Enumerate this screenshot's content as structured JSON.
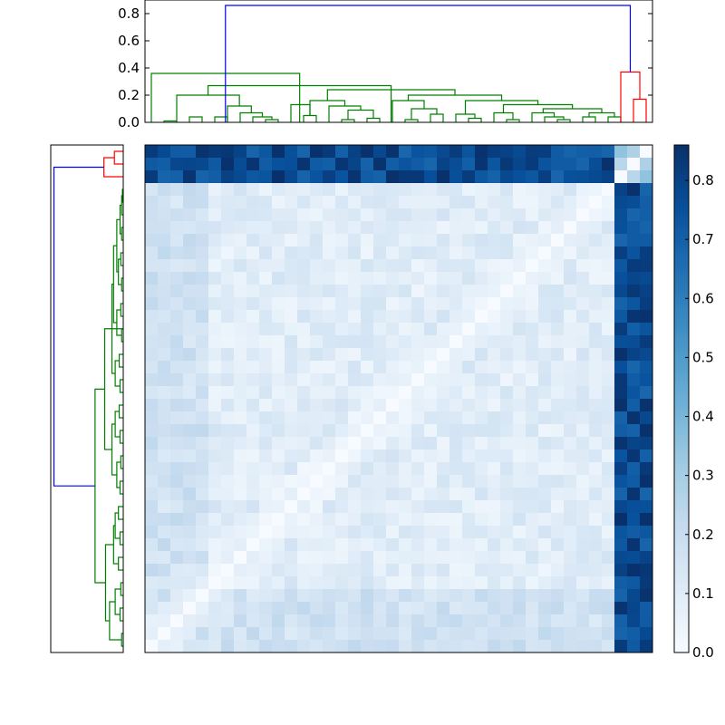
{
  "chart_data": [
    {
      "type": "dendrogram",
      "orientation": "top",
      "ylim": [
        0,
        0.9
      ],
      "yticks": [
        "0.0",
        "0.2",
        "0.4",
        "0.6",
        "0.8"
      ],
      "leaf_count": 40,
      "links": [
        {
          "a": 1,
          "b": 2,
          "h": 0.01,
          "color": "#008000"
        },
        {
          "a": 3,
          "b": 4,
          "h": 0.04,
          "color": "#008000"
        },
        {
          "a": 5,
          "b": 6,
          "h": 0.04,
          "color": "#008000"
        },
        {
          "a": 9,
          "b": 10,
          "h": 0.02,
          "color": "#008000"
        },
        {
          "a": 8,
          "b": 9.5,
          "h": 0.04,
          "color": "#008000"
        },
        {
          "a": 7,
          "b": 8.75,
          "h": 0.07,
          "color": "#008000"
        },
        {
          "a": 6,
          "b": 7.88,
          "h": 0.12,
          "color": "#008000"
        },
        {
          "a": 2,
          "b": 6.94,
          "h": 0.2,
          "color": "#008000"
        },
        {
          "a": 12,
          "b": 13,
          "h": 0.05,
          "color": "#008000"
        },
        {
          "a": 11,
          "b": 12.5,
          "h": 0.13,
          "color": "#008000"
        },
        {
          "a": 15,
          "b": 16,
          "h": 0.02,
          "color": "#008000"
        },
        {
          "a": 17,
          "b": 18,
          "h": 0.03,
          "color": "#008000"
        },
        {
          "a": 15.5,
          "b": 17.5,
          "h": 0.09,
          "color": "#008000"
        },
        {
          "a": 14,
          "b": 16.5,
          "h": 0.12,
          "color": "#008000"
        },
        {
          "a": 12.5,
          "b": 15.25,
          "h": 0.16,
          "color": "#008000"
        },
        {
          "a": 20,
          "b": 21,
          "h": 0.02,
          "color": "#008000"
        },
        {
          "a": 22,
          "b": 23,
          "h": 0.06,
          "color": "#008000"
        },
        {
          "a": 20.5,
          "b": 22.5,
          "h": 0.1,
          "color": "#008000"
        },
        {
          "a": 19,
          "b": 21.5,
          "h": 0.16,
          "color": "#008000"
        },
        {
          "a": 25,
          "b": 26,
          "h": 0.03,
          "color": "#008000"
        },
        {
          "a": 24,
          "b": 25.5,
          "h": 0.06,
          "color": "#008000"
        },
        {
          "a": 28,
          "b": 29,
          "h": 0.02,
          "color": "#008000"
        },
        {
          "a": 27,
          "b": 28.5,
          "h": 0.07,
          "color": "#008000"
        },
        {
          "a": 32,
          "b": 33,
          "h": 0.02,
          "color": "#008000"
        },
        {
          "a": 31,
          "b": 32.5,
          "h": 0.04,
          "color": "#008000"
        },
        {
          "a": 30,
          "b": 31.75,
          "h": 0.07,
          "color": "#008000"
        },
        {
          "a": 34,
          "b": 35,
          "h": 0.04,
          "color": "#008000"
        },
        {
          "a": 36,
          "b": 37,
          "h": 0.04,
          "color": "#008000"
        },
        {
          "a": 34.5,
          "b": 36.5,
          "h": 0.07,
          "color": "#008000"
        },
        {
          "a": 30.88,
          "b": 35.5,
          "h": 0.1,
          "color": "#008000"
        },
        {
          "a": 27.75,
          "b": 33.19,
          "h": 0.13,
          "color": "#008000"
        },
        {
          "a": 24.75,
          "b": 30.47,
          "h": 0.16,
          "color": "#008000"
        },
        {
          "a": 20.25,
          "b": 27.61,
          "h": 0.2,
          "color": "#008000"
        },
        {
          "a": 13.88,
          "b": 23.93,
          "h": 0.24,
          "color": "#008000"
        },
        {
          "a": 4.47,
          "b": 18.9,
          "h": 0.27,
          "color": "#008000"
        },
        {
          "a": 0,
          "b": 11.69,
          "h": 0.36,
          "color": "#008000"
        },
        {
          "a": 38,
          "b": 39,
          "h": 0.17,
          "color": "#ff0000"
        },
        {
          "a": 37,
          "b": 38.5,
          "h": 0.37,
          "color": "#ff0000"
        },
        {
          "a": 5.84,
          "b": 37.75,
          "h": 0.86,
          "color": "#0000ff"
        }
      ]
    },
    {
      "type": "dendrogram",
      "orientation": "left",
      "xlim": [
        0,
        0.9
      ],
      "leaf_count": 40,
      "links": [
        {
          "a": 0,
          "b": 1,
          "h": 0.11,
          "color": "#ff0000"
        },
        {
          "a": 0.5,
          "b": 2,
          "h": 0.24,
          "color": "#ff0000"
        },
        {
          "a": 3,
          "b": 4,
          "h": 0.01,
          "color": "#008000"
        },
        {
          "a": 3.5,
          "b": 5,
          "h": 0.02,
          "color": "#008000"
        },
        {
          "a": 6,
          "b": 7,
          "h": 0.02,
          "color": "#008000"
        },
        {
          "a": 4.25,
          "b": 6.5,
          "h": 0.04,
          "color": "#008000"
        },
        {
          "a": 8,
          "b": 9,
          "h": 0.03,
          "color": "#008000"
        },
        {
          "a": 10,
          "b": 11,
          "h": 0.02,
          "color": "#008000"
        },
        {
          "a": 8.5,
          "b": 10.5,
          "h": 0.06,
          "color": "#008000"
        },
        {
          "a": 5.38,
          "b": 9.5,
          "h": 0.08,
          "color": "#008000"
        },
        {
          "a": 12,
          "b": 13,
          "h": 0.03,
          "color": "#008000"
        },
        {
          "a": 14,
          "b": 15,
          "h": 0.02,
          "color": "#008000"
        },
        {
          "a": 12.5,
          "b": 14.5,
          "h": 0.08,
          "color": "#008000"
        },
        {
          "a": 7.44,
          "b": 13.5,
          "h": 0.12,
          "color": "#008000"
        },
        {
          "a": 16,
          "b": 17,
          "h": 0.05,
          "color": "#008000"
        },
        {
          "a": 18,
          "b": 19,
          "h": 0.04,
          "color": "#008000"
        },
        {
          "a": 16.5,
          "b": 18.5,
          "h": 0.1,
          "color": "#008000"
        },
        {
          "a": 10.47,
          "b": 17.5,
          "h": 0.14,
          "color": "#008000"
        },
        {
          "a": 20,
          "b": 21,
          "h": 0.05,
          "color": "#008000"
        },
        {
          "a": 22,
          "b": 23,
          "h": 0.04,
          "color": "#008000"
        },
        {
          "a": 20.5,
          "b": 22.5,
          "h": 0.1,
          "color": "#008000"
        },
        {
          "a": 24,
          "b": 25,
          "h": 0.03,
          "color": "#008000"
        },
        {
          "a": 26,
          "b": 27,
          "h": 0.04,
          "color": "#008000"
        },
        {
          "a": 24.5,
          "b": 26.5,
          "h": 0.08,
          "color": "#008000"
        },
        {
          "a": 21.5,
          "b": 25.5,
          "h": 0.14,
          "color": "#008000"
        },
        {
          "a": 13.98,
          "b": 23.5,
          "h": 0.23,
          "color": "#008000"
        },
        {
          "a": 28,
          "b": 29,
          "h": 0.06,
          "color": "#008000"
        },
        {
          "a": 30,
          "b": 31,
          "h": 0.04,
          "color": "#008000"
        },
        {
          "a": 28.5,
          "b": 30.5,
          "h": 0.1,
          "color": "#008000"
        },
        {
          "a": 32,
          "b": 33,
          "h": 0.06,
          "color": "#008000"
        },
        {
          "a": 29.5,
          "b": 32.5,
          "h": 0.12,
          "color": "#008000"
        },
        {
          "a": 34,
          "b": 35,
          "h": 0.03,
          "color": "#008000"
        },
        {
          "a": 36,
          "b": 37,
          "h": 0.04,
          "color": "#008000"
        },
        {
          "a": 34.5,
          "b": 36.5,
          "h": 0.1,
          "color": "#008000"
        },
        {
          "a": 38,
          "b": 39,
          "h": 0.02,
          "color": "#008000"
        },
        {
          "a": 35.5,
          "b": 38.5,
          "h": 0.17,
          "color": "#008000"
        },
        {
          "a": 31,
          "b": 37,
          "h": 0.22,
          "color": "#008000"
        },
        {
          "a": 18.74,
          "b": 34,
          "h": 0.35,
          "color": "#008000"
        },
        {
          "a": 1.25,
          "b": 26.37,
          "h": 0.86,
          "color": "#0000ff"
        }
      ]
    },
    {
      "type": "heatmap",
      "size": 40,
      "colormap": "Blues",
      "colormap_stops": [
        "#f7fbff",
        "#deebf7",
        "#c6dbef",
        "#9ecae1",
        "#6baed6",
        "#4292c6",
        "#2171b5",
        "#08519c",
        "#08306b"
      ],
      "vmin": 0,
      "vmax": 0.86,
      "pattern": "symmetric matrix with a zero diagonal running from the bottom-left to the top-right; values around 0.02-0.2 inside the large green cluster, about 0.7-0.86 between the green cluster and the 3 red-cluster items"
    },
    {
      "type": "colorbar",
      "ylim": [
        0,
        0.86
      ],
      "yticks": [
        "0.0",
        "0.1",
        "0.2",
        "0.3",
        "0.4",
        "0.5",
        "0.6",
        "0.7",
        "0.8"
      ]
    }
  ]
}
